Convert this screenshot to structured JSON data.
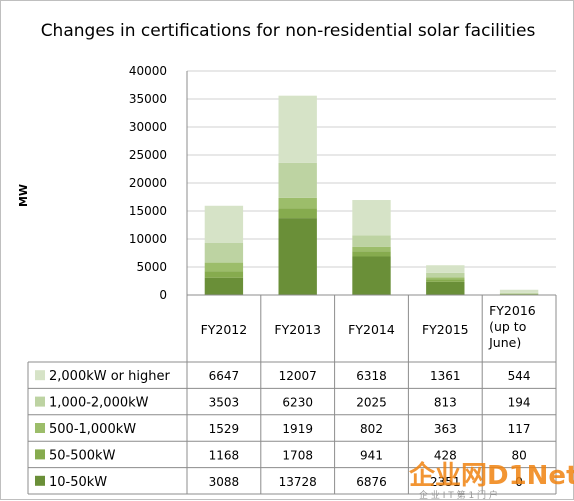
{
  "chart_data": {
    "type": "bar",
    "stacked": true,
    "title": "Changes in certifications for non-residential solar facilities",
    "ylabel": "MW",
    "xlabel": "",
    "ylim": [
      0,
      40000
    ],
    "yticks": [
      0,
      5000,
      10000,
      15000,
      20000,
      25000,
      30000,
      35000,
      40000
    ],
    "grid": true,
    "categories": [
      "FY2012",
      "FY2013",
      "FY2014",
      "FY2015",
      "FY2016 (up to June)"
    ],
    "series": [
      {
        "name": "2,000kW or higher",
        "color": "#d6e3c7",
        "values": [
          6647,
          12007,
          6318,
          1361,
          544
        ]
      },
      {
        "name": "1,000-2,000kW",
        "color": "#bdd3a2",
        "values": [
          3503,
          6230,
          2025,
          813,
          194
        ]
      },
      {
        "name": "500-1,000kW",
        "color": "#9cbd6a",
        "values": [
          1529,
          1919,
          802,
          363,
          117
        ]
      },
      {
        "name": "50-500kW",
        "color": "#86ab4e",
        "values": [
          1168,
          1708,
          941,
          428,
          80
        ]
      },
      {
        "name": "10-50kW",
        "color": "#6a8f38",
        "values": [
          3088,
          13728,
          6876,
          2351,
          0
        ]
      }
    ],
    "legend_placement": "left of data table"
  },
  "watermark": {
    "main": "企业网D1Net",
    "sub": "企 业 I T 第 1 门 户"
  }
}
